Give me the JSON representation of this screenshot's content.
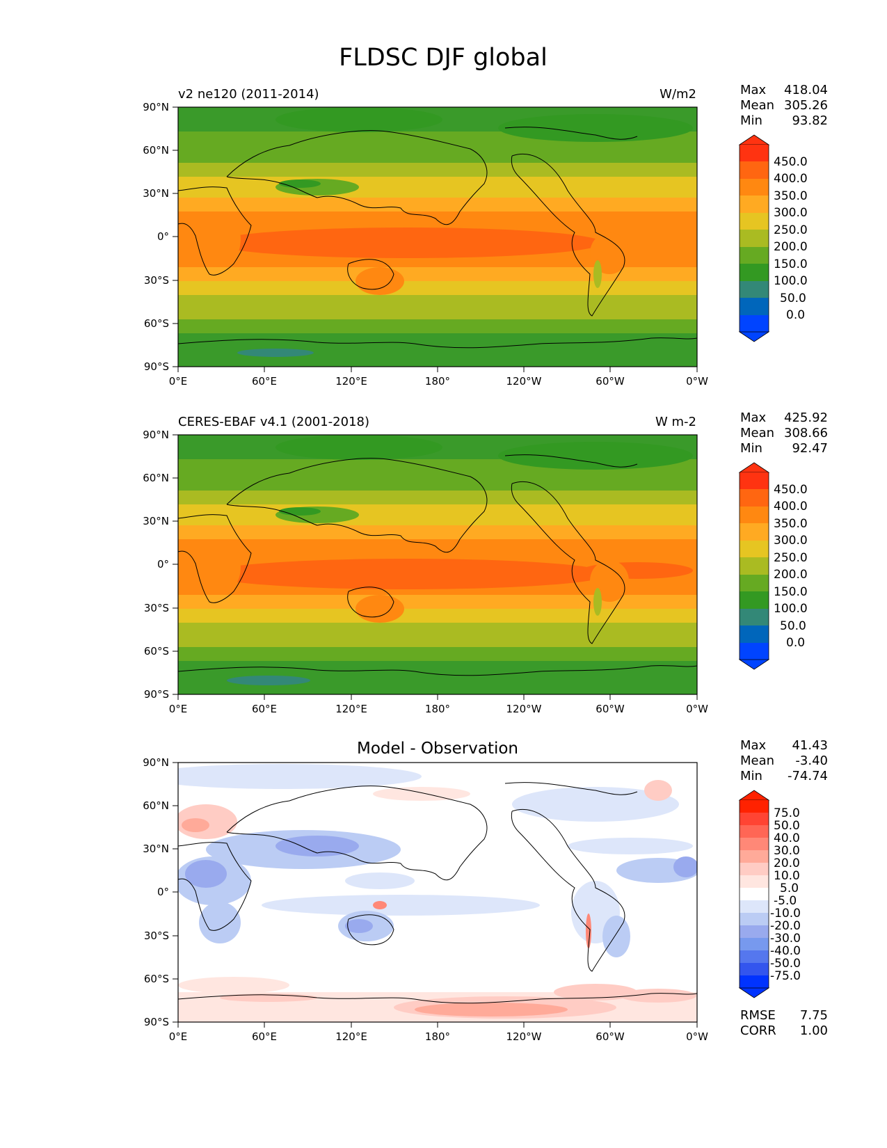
{
  "figure": {
    "title": "FLDSC DJF global"
  },
  "axes": {
    "lat_ticks": [
      "90°N",
      "60°N",
      "30°N",
      "0°",
      "30°S",
      "60°S",
      "90°S"
    ],
    "lon_ticks": [
      "0°E",
      "60°E",
      "120°E",
      "180°",
      "120°W",
      "60°W",
      "0°W"
    ]
  },
  "panels": [
    {
      "subtitle_left": "v2 ne120 (2011-2014)",
      "units": "W/m2",
      "stats": [
        {
          "label": "Max",
          "value": "418.04"
        },
        {
          "label": "Mean",
          "value": "305.26"
        },
        {
          "label": "Min",
          "value": "93.82"
        }
      ],
      "colorbar_labels": [
        "450.0",
        "400.0",
        "350.0",
        "300.0",
        "250.0",
        "200.0",
        "150.0",
        "100.0",
        "50.0",
        "0.0"
      ]
    },
    {
      "subtitle_left": "CERES-EBAF v4.1 (2001-2018)",
      "units": "W m-2",
      "stats": [
        {
          "label": "Max",
          "value": "425.92"
        },
        {
          "label": "Mean",
          "value": "308.66"
        },
        {
          "label": "Min",
          "value": "92.47"
        }
      ],
      "colorbar_labels": [
        "450.0",
        "400.0",
        "350.0",
        "300.0",
        "250.0",
        "200.0",
        "150.0",
        "100.0",
        "50.0",
        "0.0"
      ]
    },
    {
      "title": "Model - Observation",
      "stats": [
        {
          "label": "Max",
          "value": "41.43"
        },
        {
          "label": "Mean",
          "value": "-3.40"
        },
        {
          "label": "Min",
          "value": "-74.74"
        }
      ],
      "colorbar_labels": [
        "75.0",
        "50.0",
        "40.0",
        "30.0",
        "20.0",
        "10.0",
        "5.0",
        "-5.0",
        "-10.0",
        "-20.0",
        "-30.0",
        "-40.0",
        "-50.0",
        "-75.0"
      ],
      "extra_stats": [
        {
          "label": "RMSE",
          "value": "7.75"
        },
        {
          "label": "CORR",
          "value": "1.00"
        }
      ]
    }
  ],
  "colors": {
    "field_scale": [
      "#0044ff",
      "#0066bb",
      "#338877",
      "#339922",
      "#66aa22",
      "#aabb22",
      "#e6c522",
      "#ffaa22",
      "#ff8811",
      "#ff6611",
      "#ff3311"
    ],
    "diff_scale": [
      "#0033ff",
      "#3355ee",
      "#5577ee",
      "#7799ee",
      "#99aaee",
      "#bbccf4",
      "#dde6fa",
      "#ffffff",
      "#ffe6e0",
      "#ffccc4",
      "#ffaa99",
      "#ff8877",
      "#ff6655",
      "#ff4433",
      "#ff2200"
    ]
  }
}
